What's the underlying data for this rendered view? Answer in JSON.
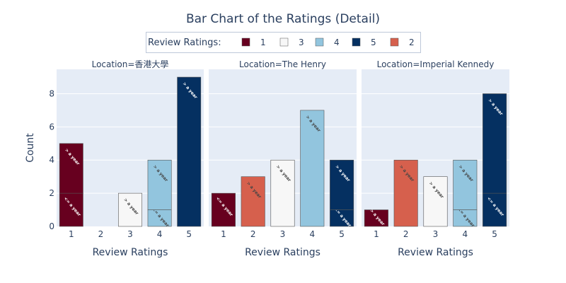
{
  "chart_data": {
    "type": "bar",
    "title": "Bar Chart of the Ratings (Detail)",
    "legend": {
      "title": "Review Ratings:",
      "position": "top-center",
      "entries": [
        {
          "label": "1",
          "color": "#67001f"
        },
        {
          "label": "3",
          "color": "#f7f7f7"
        },
        {
          "label": "4",
          "color": "#92c5de"
        },
        {
          "label": "5",
          "color": "#053061"
        },
        {
          "label": "2",
          "color": "#d6604d"
        }
      ]
    },
    "colors": {
      "1": "#67001f",
      "2": "#d6604d",
      "3": "#f7f7f7",
      "4": "#92c5de",
      "5": "#053061"
    },
    "text_colors": {
      "1": "#ffffff",
      "2": "#444444",
      "3": "#444444",
      "4": "#444444",
      "5": "#ffffff"
    },
    "categories": [
      "1",
      "2",
      "3",
      "4",
      "5"
    ],
    "xlabel": "Review Ratings",
    "ylabel": "Count",
    "ylim": [
      0,
      9.47
    ],
    "yticks": [
      0,
      2,
      4,
      6,
      8
    ],
    "grid": true,
    "panels": [
      {
        "facet_label": "Location=香港大學",
        "bars": [
          {
            "category": "1",
            "segments": [
              {
                "label": "<= a year",
                "value": 2
              },
              {
                "label": "> a year",
                "value": 3
              }
            ]
          },
          {
            "category": "2",
            "segments": []
          },
          {
            "category": "3",
            "segments": [
              {
                "label": "> a year",
                "value": 2
              }
            ]
          },
          {
            "category": "4",
            "segments": [
              {
                "label": "<= a year",
                "value": 1
              },
              {
                "label": "> a year",
                "value": 3
              }
            ]
          },
          {
            "category": "5",
            "segments": [
              {
                "label": "> a year",
                "value": 9
              }
            ]
          }
        ]
      },
      {
        "facet_label": "Location=The Henry",
        "bars": [
          {
            "category": "1",
            "segments": [
              {
                "label": "<= a year",
                "value": 2
              }
            ]
          },
          {
            "category": "2",
            "segments": [
              {
                "label": "> a year",
                "value": 3
              }
            ]
          },
          {
            "category": "3",
            "segments": [
              {
                "label": "> a year",
                "value": 4
              }
            ]
          },
          {
            "category": "4",
            "segments": [
              {
                "label": "> a year",
                "value": 7
              }
            ]
          },
          {
            "category": "5",
            "segments": [
              {
                "label": "<= a year",
                "value": 1
              },
              {
                "label": "> a year",
                "value": 3
              }
            ]
          }
        ]
      },
      {
        "facet_label": "Location=Imperial Kennedy",
        "bars": [
          {
            "category": "1",
            "segments": [
              {
                "label": "> a year",
                "value": 1
              }
            ]
          },
          {
            "category": "2",
            "segments": [
              {
                "label": "> a year",
                "value": 4
              }
            ]
          },
          {
            "category": "3",
            "segments": [
              {
                "label": "> a year",
                "value": 3
              }
            ]
          },
          {
            "category": "4",
            "segments": [
              {
                "label": "<= a year",
                "value": 1
              },
              {
                "label": "> a year",
                "value": 3
              }
            ]
          },
          {
            "category": "5",
            "segments": [
              {
                "label": "<= a year",
                "value": 2
              },
              {
                "label": "> a year",
                "value": 6
              }
            ]
          }
        ]
      }
    ]
  }
}
